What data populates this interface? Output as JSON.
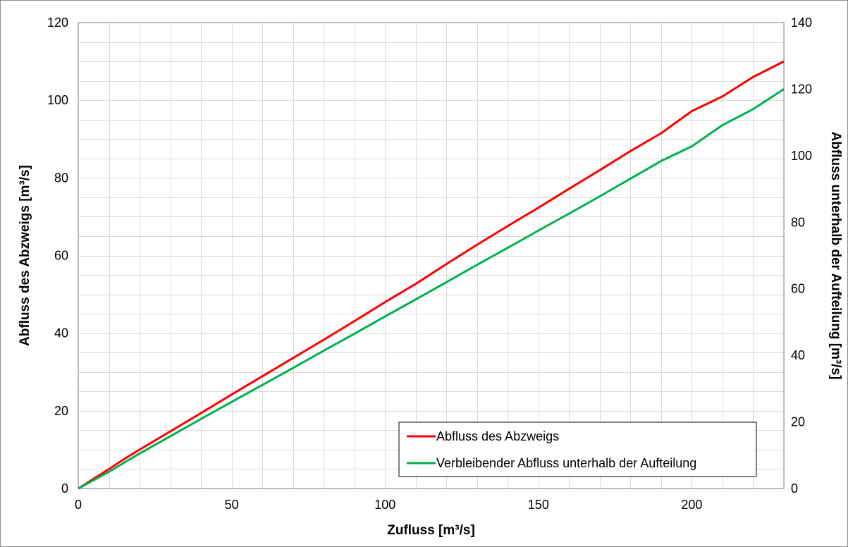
{
  "chart_data": {
    "type": "line",
    "x": [
      0,
      5,
      10,
      15,
      20,
      30,
      40,
      50,
      60,
      70,
      80,
      90,
      100,
      110,
      120,
      130,
      140,
      150,
      160,
      170,
      180,
      190,
      200,
      210,
      220,
      230
    ],
    "series": [
      {
        "name": "Abfluss des Abzweigs",
        "axis": "left",
        "color": "#ff0000",
        "values": [
          0,
          2.5,
          5,
          7.6,
          10,
          14.7,
          19.4,
          24.2,
          28.9,
          33.6,
          38.3,
          43.1,
          48.0,
          52.7,
          57.8,
          62.8,
          67.6,
          72.3,
          77.2,
          82.0,
          86.9,
          91.5,
          97.2,
          101.0,
          106.0,
          110.0
        ]
      },
      {
        "name": "Verbleibender Abfluss unterhalb der Aufteilung",
        "axis": "right",
        "color": "#00b050",
        "values": [
          0,
          2.5,
          5,
          7.8,
          10.5,
          15.7,
          20.9,
          26.0,
          31.1,
          36.2,
          41.4,
          46.5,
          51.7,
          56.8,
          62.0,
          67.2,
          72.3,
          77.5,
          82.6,
          87.8,
          93.1,
          98.4,
          102.8,
          109.2,
          114.0,
          120.0
        ]
      }
    ],
    "xlabel": "Zufluss [m³/s]",
    "ylabel": "Abfluss  des Abzweigs [m³/s]",
    "y2label": "Abfluss unterhalb der Aufteilung [m³/s]",
    "xlim": [
      0,
      230
    ],
    "ylim": [
      0,
      120
    ],
    "y2lim": [
      0,
      140
    ],
    "xticks": [
      0,
      50,
      100,
      150,
      200
    ],
    "yticks": [
      0,
      20,
      40,
      60,
      80,
      100,
      120
    ],
    "y2ticks": [
      0,
      20,
      40,
      60,
      80,
      100,
      120,
      140
    ],
    "x_minor_step": 10,
    "y_minor_step": 5,
    "grid": true,
    "legend_position": "bottom-right",
    "grid_color": "#d9d9d9"
  }
}
